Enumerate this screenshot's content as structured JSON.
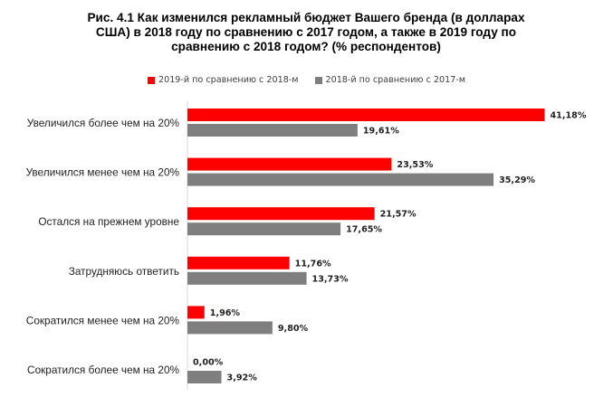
{
  "chart_data": {
    "type": "bar",
    "orientation": "horizontal",
    "title_lines": [
      "Рис. 4.1 Как изменился рекламный бюджет Вашего бренда (в долларах",
      "США) в 2018 году по сравнению с 2017 годом, а также в 2019 году по",
      "сравнению с 2018 годом? (% респондентов)"
    ],
    "categories": [
      "Увеличился более чем на 20%",
      "Увеличился менее чем на 20%",
      "Остался на прежнем уровне",
      "Затрудняюсь ответить",
      "Сократился менее чем на 20%",
      "Сократился более чем на 20%"
    ],
    "series": [
      {
        "name": "2019-й по сравнению с 2018-м",
        "color": "#ff0000",
        "values": [
          41.18,
          23.53,
          21.57,
          11.76,
          1.96,
          0.0
        ],
        "labels": [
          "41,18%",
          "23,53%",
          "21,57%",
          "11,76%",
          "1,96%",
          "0,00%"
        ]
      },
      {
        "name": "2018-й по сравнению с 2017-м",
        "color": "#7f7f7f",
        "values": [
          19.61,
          35.29,
          17.65,
          13.73,
          9.8,
          3.92
        ],
        "labels": [
          "19,61%",
          "35,29%",
          "17,65%",
          "13,73%",
          "9,80%",
          "3,92%"
        ]
      }
    ],
    "legend_position": "top",
    "grid": false
  }
}
